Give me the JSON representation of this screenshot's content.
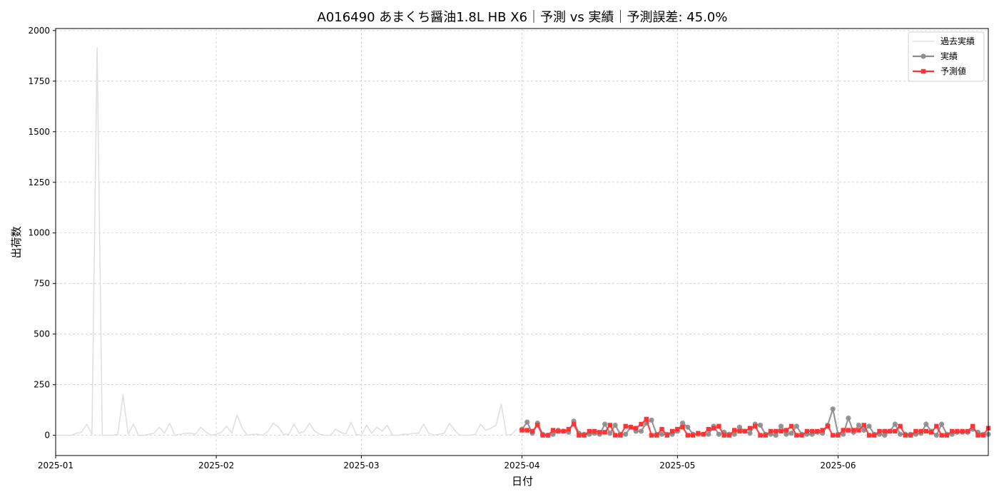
{
  "chart_data": {
    "type": "line",
    "title": "A016490 あまくち醤油1.8L HB X6｜予測 vs 実績｜予測誤差: 45.0%",
    "xlabel": "日付",
    "ylabel": "出荷数",
    "xlim": [
      "2025-01-01",
      "2025-06-30"
    ],
    "ylim": [
      -100,
      2010
    ],
    "x_ticks": [
      "2025-01",
      "2025-02",
      "2025-03",
      "2025-04",
      "2025-05",
      "2025-06"
    ],
    "y_ticks": [
      0,
      250,
      500,
      750,
      1000,
      1250,
      1500,
      1750,
      2000
    ],
    "grid": true,
    "legend_position": "top-right",
    "series": [
      {
        "name": "過去実績",
        "color": "#e0e0e0",
        "marker": "none",
        "points": [
          [
            "2025-01-01",
            0
          ],
          [
            "2025-01-02",
            0
          ],
          [
            "2025-01-03",
            0
          ],
          [
            "2025-01-04",
            0
          ],
          [
            "2025-01-05",
            10
          ],
          [
            "2025-01-06",
            15
          ],
          [
            "2025-01-07",
            55
          ],
          [
            "2025-01-08",
            5
          ],
          [
            "2025-01-09",
            1915
          ],
          [
            "2025-01-10",
            0
          ],
          [
            "2025-01-11",
            0
          ],
          [
            "2025-01-12",
            0
          ],
          [
            "2025-01-13",
            5
          ],
          [
            "2025-01-14",
            200
          ],
          [
            "2025-01-15",
            5
          ],
          [
            "2025-01-16",
            55
          ],
          [
            "2025-01-17",
            0
          ],
          [
            "2025-01-18",
            0
          ],
          [
            "2025-01-19",
            5
          ],
          [
            "2025-01-20",
            10
          ],
          [
            "2025-01-21",
            40
          ],
          [
            "2025-01-22",
            10
          ],
          [
            "2025-01-23",
            60
          ],
          [
            "2025-01-24",
            0
          ],
          [
            "2025-01-25",
            5
          ],
          [
            "2025-01-26",
            10
          ],
          [
            "2025-01-27",
            10
          ],
          [
            "2025-01-28",
            5
          ],
          [
            "2025-01-29",
            40
          ],
          [
            "2025-01-30",
            15
          ],
          [
            "2025-01-31",
            0
          ],
          [
            "2025-02-01",
            5
          ],
          [
            "2025-02-02",
            15
          ],
          [
            "2025-02-03",
            45
          ],
          [
            "2025-02-04",
            10
          ],
          [
            "2025-02-05",
            100
          ],
          [
            "2025-02-06",
            35
          ],
          [
            "2025-02-07",
            0
          ],
          [
            "2025-02-08",
            5
          ],
          [
            "2025-02-09",
            5
          ],
          [
            "2025-02-10",
            0
          ],
          [
            "2025-02-11",
            20
          ],
          [
            "2025-02-12",
            60
          ],
          [
            "2025-02-13",
            40
          ],
          [
            "2025-02-14",
            5
          ],
          [
            "2025-02-15",
            5
          ],
          [
            "2025-02-16",
            55
          ],
          [
            "2025-02-17",
            10
          ],
          [
            "2025-02-18",
            20
          ],
          [
            "2025-02-19",
            60
          ],
          [
            "2025-02-20",
            20
          ],
          [
            "2025-02-21",
            5
          ],
          [
            "2025-02-22",
            0
          ],
          [
            "2025-02-23",
            0
          ],
          [
            "2025-02-24",
            30
          ],
          [
            "2025-02-25",
            15
          ],
          [
            "2025-02-26",
            5
          ],
          [
            "2025-02-27",
            65
          ],
          [
            "2025-02-28",
            5
          ],
          [
            "2025-03-01",
            0
          ],
          [
            "2025-03-02",
            50
          ],
          [
            "2025-03-03",
            10
          ],
          [
            "2025-03-04",
            40
          ],
          [
            "2025-03-05",
            20
          ],
          [
            "2025-03-06",
            50
          ],
          [
            "2025-03-07",
            0
          ],
          [
            "2025-03-08",
            0
          ],
          [
            "2025-03-09",
            5
          ],
          [
            "2025-03-10",
            5
          ],
          [
            "2025-03-11",
            10
          ],
          [
            "2025-03-12",
            10
          ],
          [
            "2025-03-13",
            55
          ],
          [
            "2025-03-14",
            10
          ],
          [
            "2025-03-15",
            0
          ],
          [
            "2025-03-16",
            5
          ],
          [
            "2025-03-17",
            10
          ],
          [
            "2025-03-18",
            60
          ],
          [
            "2025-03-19",
            25
          ],
          [
            "2025-03-20",
            0
          ],
          [
            "2025-03-21",
            0
          ],
          [
            "2025-03-22",
            0
          ],
          [
            "2025-03-23",
            5
          ],
          [
            "2025-03-24",
            55
          ],
          [
            "2025-03-25",
            25
          ],
          [
            "2025-03-26",
            35
          ],
          [
            "2025-03-27",
            50
          ],
          [
            "2025-03-28",
            155
          ],
          [
            "2025-03-29",
            0
          ],
          [
            "2025-03-30",
            5
          ],
          [
            "2025-03-31",
            30
          ]
        ]
      },
      {
        "name": "実績",
        "color": "#8c8c8c",
        "marker": "circle",
        "points": [
          [
            "2025-04-01",
            30
          ],
          [
            "2025-04-02",
            65
          ],
          [
            "2025-04-03",
            10
          ],
          [
            "2025-04-04",
            60
          ],
          [
            "2025-04-05",
            5
          ],
          [
            "2025-04-06",
            0
          ],
          [
            "2025-04-07",
            5
          ],
          [
            "2025-04-08",
            25
          ],
          [
            "2025-04-09",
            20
          ],
          [
            "2025-04-10",
            15
          ],
          [
            "2025-04-11",
            70
          ],
          [
            "2025-04-12",
            10
          ],
          [
            "2025-04-13",
            5
          ],
          [
            "2025-04-14",
            5
          ],
          [
            "2025-04-15",
            10
          ],
          [
            "2025-04-16",
            5
          ],
          [
            "2025-04-17",
            55
          ],
          [
            "2025-04-18",
            10
          ],
          [
            "2025-04-19",
            50
          ],
          [
            "2025-04-20",
            5
          ],
          [
            "2025-04-21",
            5
          ],
          [
            "2025-04-22",
            40
          ],
          [
            "2025-04-23",
            20
          ],
          [
            "2025-04-24",
            20
          ],
          [
            "2025-04-25",
            60
          ],
          [
            "2025-04-26",
            75
          ],
          [
            "2025-04-27",
            5
          ],
          [
            "2025-04-28",
            5
          ],
          [
            "2025-04-29",
            5
          ],
          [
            "2025-04-30",
            5
          ],
          [
            "2025-05-01",
            20
          ],
          [
            "2025-05-02",
            60
          ],
          [
            "2025-05-03",
            40
          ],
          [
            "2025-05-04",
            5
          ],
          [
            "2025-05-05",
            5
          ],
          [
            "2025-05-06",
            5
          ],
          [
            "2025-05-07",
            5
          ],
          [
            "2025-05-08",
            45
          ],
          [
            "2025-05-09",
            5
          ],
          [
            "2025-05-10",
            15
          ],
          [
            "2025-05-11",
            5
          ],
          [
            "2025-05-12",
            5
          ],
          [
            "2025-05-13",
            40
          ],
          [
            "2025-05-14",
            20
          ],
          [
            "2025-05-15",
            10
          ],
          [
            "2025-05-16",
            55
          ],
          [
            "2025-05-17",
            50
          ],
          [
            "2025-05-18",
            5
          ],
          [
            "2025-05-19",
            5
          ],
          [
            "2025-05-20",
            0
          ],
          [
            "2025-05-21",
            45
          ],
          [
            "2025-05-22",
            5
          ],
          [
            "2025-05-23",
            10
          ],
          [
            "2025-05-24",
            45
          ],
          [
            "2025-05-25",
            5
          ],
          [
            "2025-05-26",
            5
          ],
          [
            "2025-05-27",
            5
          ],
          [
            "2025-05-28",
            15
          ],
          [
            "2025-05-29",
            10
          ],
          [
            "2025-05-30",
            50
          ],
          [
            "2025-05-31",
            130
          ],
          [
            "2025-06-01",
            5
          ],
          [
            "2025-06-02",
            5
          ],
          [
            "2025-06-03",
            85
          ],
          [
            "2025-06-04",
            15
          ],
          [
            "2025-06-05",
            50
          ],
          [
            "2025-06-06",
            25
          ],
          [
            "2025-06-07",
            45
          ],
          [
            "2025-06-08",
            5
          ],
          [
            "2025-06-09",
            5
          ],
          [
            "2025-06-10",
            0
          ],
          [
            "2025-06-11",
            20
          ],
          [
            "2025-06-12",
            55
          ],
          [
            "2025-06-13",
            5
          ],
          [
            "2025-06-14",
            5
          ],
          [
            "2025-06-15",
            5
          ],
          [
            "2025-06-16",
            5
          ],
          [
            "2025-06-17",
            10
          ],
          [
            "2025-06-18",
            55
          ],
          [
            "2025-06-19",
            20
          ],
          [
            "2025-06-20",
            0
          ],
          [
            "2025-06-21",
            55
          ],
          [
            "2025-06-22",
            5
          ],
          [
            "2025-06-23",
            5
          ],
          [
            "2025-06-24",
            15
          ],
          [
            "2025-06-25",
            15
          ],
          [
            "2025-06-26",
            15
          ],
          [
            "2025-06-27",
            30
          ],
          [
            "2025-06-28",
            15
          ],
          [
            "2025-06-29",
            5
          ],
          [
            "2025-06-30",
            5
          ]
        ]
      },
      {
        "name": "予測値",
        "color": "#ff3333",
        "marker": "square",
        "points": [
          [
            "2025-04-01",
            25
          ],
          [
            "2025-04-02",
            25
          ],
          [
            "2025-04-03",
            20
          ],
          [
            "2025-04-04",
            50
          ],
          [
            "2025-04-05",
            0
          ],
          [
            "2025-04-06",
            0
          ],
          [
            "2025-04-07",
            25
          ],
          [
            "2025-04-08",
            20
          ],
          [
            "2025-04-09",
            20
          ],
          [
            "2025-04-10",
            30
          ],
          [
            "2025-04-11",
            55
          ],
          [
            "2025-04-12",
            0
          ],
          [
            "2025-04-13",
            0
          ],
          [
            "2025-04-14",
            20
          ],
          [
            "2025-04-15",
            20
          ],
          [
            "2025-04-16",
            15
          ],
          [
            "2025-04-17",
            15
          ],
          [
            "2025-04-18",
            50
          ],
          [
            "2025-04-19",
            0
          ],
          [
            "2025-04-20",
            0
          ],
          [
            "2025-04-21",
            45
          ],
          [
            "2025-04-22",
            40
          ],
          [
            "2025-04-23",
            35
          ],
          [
            "2025-04-24",
            55
          ],
          [
            "2025-04-25",
            80
          ],
          [
            "2025-04-26",
            0
          ],
          [
            "2025-04-27",
            0
          ],
          [
            "2025-04-28",
            30
          ],
          [
            "2025-04-29",
            0
          ],
          [
            "2025-04-30",
            20
          ],
          [
            "2025-05-01",
            30
          ],
          [
            "2025-05-02",
            40
          ],
          [
            "2025-05-03",
            0
          ],
          [
            "2025-05-04",
            0
          ],
          [
            "2025-05-05",
            10
          ],
          [
            "2025-05-06",
            5
          ],
          [
            "2025-05-07",
            30
          ],
          [
            "2025-05-08",
            35
          ],
          [
            "2025-05-09",
            45
          ],
          [
            "2025-05-10",
            0
          ],
          [
            "2025-05-11",
            0
          ],
          [
            "2025-05-12",
            25
          ],
          [
            "2025-05-13",
            20
          ],
          [
            "2025-05-14",
            20
          ],
          [
            "2025-05-15",
            35
          ],
          [
            "2025-05-16",
            45
          ],
          [
            "2025-05-17",
            0
          ],
          [
            "2025-05-18",
            0
          ],
          [
            "2025-05-19",
            20
          ],
          [
            "2025-05-20",
            20
          ],
          [
            "2025-05-21",
            20
          ],
          [
            "2025-05-22",
            25
          ],
          [
            "2025-05-23",
            45
          ],
          [
            "2025-05-24",
            0
          ],
          [
            "2025-05-25",
            0
          ],
          [
            "2025-05-26",
            20
          ],
          [
            "2025-05-27",
            20
          ],
          [
            "2025-05-28",
            20
          ],
          [
            "2025-05-29",
            25
          ],
          [
            "2025-05-30",
            45
          ],
          [
            "2025-05-31",
            0
          ],
          [
            "2025-06-01",
            0
          ],
          [
            "2025-06-02",
            25
          ],
          [
            "2025-06-03",
            25
          ],
          [
            "2025-06-04",
            25
          ],
          [
            "2025-06-05",
            25
          ],
          [
            "2025-06-06",
            50
          ],
          [
            "2025-06-07",
            0
          ],
          [
            "2025-06-08",
            0
          ],
          [
            "2025-06-09",
            20
          ],
          [
            "2025-06-10",
            20
          ],
          [
            "2025-06-11",
            20
          ],
          [
            "2025-06-12",
            20
          ],
          [
            "2025-06-13",
            45
          ],
          [
            "2025-06-14",
            0
          ],
          [
            "2025-06-15",
            0
          ],
          [
            "2025-06-16",
            20
          ],
          [
            "2025-06-17",
            20
          ],
          [
            "2025-06-18",
            20
          ],
          [
            "2025-06-19",
            15
          ],
          [
            "2025-06-20",
            45
          ],
          [
            "2025-06-21",
            0
          ],
          [
            "2025-06-22",
            0
          ],
          [
            "2025-06-23",
            20
          ],
          [
            "2025-06-24",
            20
          ],
          [
            "2025-06-25",
            20
          ],
          [
            "2025-06-26",
            20
          ],
          [
            "2025-06-27",
            45
          ],
          [
            "2025-06-28",
            0
          ],
          [
            "2025-06-29",
            0
          ],
          [
            "2025-06-30",
            35
          ]
        ]
      }
    ]
  }
}
